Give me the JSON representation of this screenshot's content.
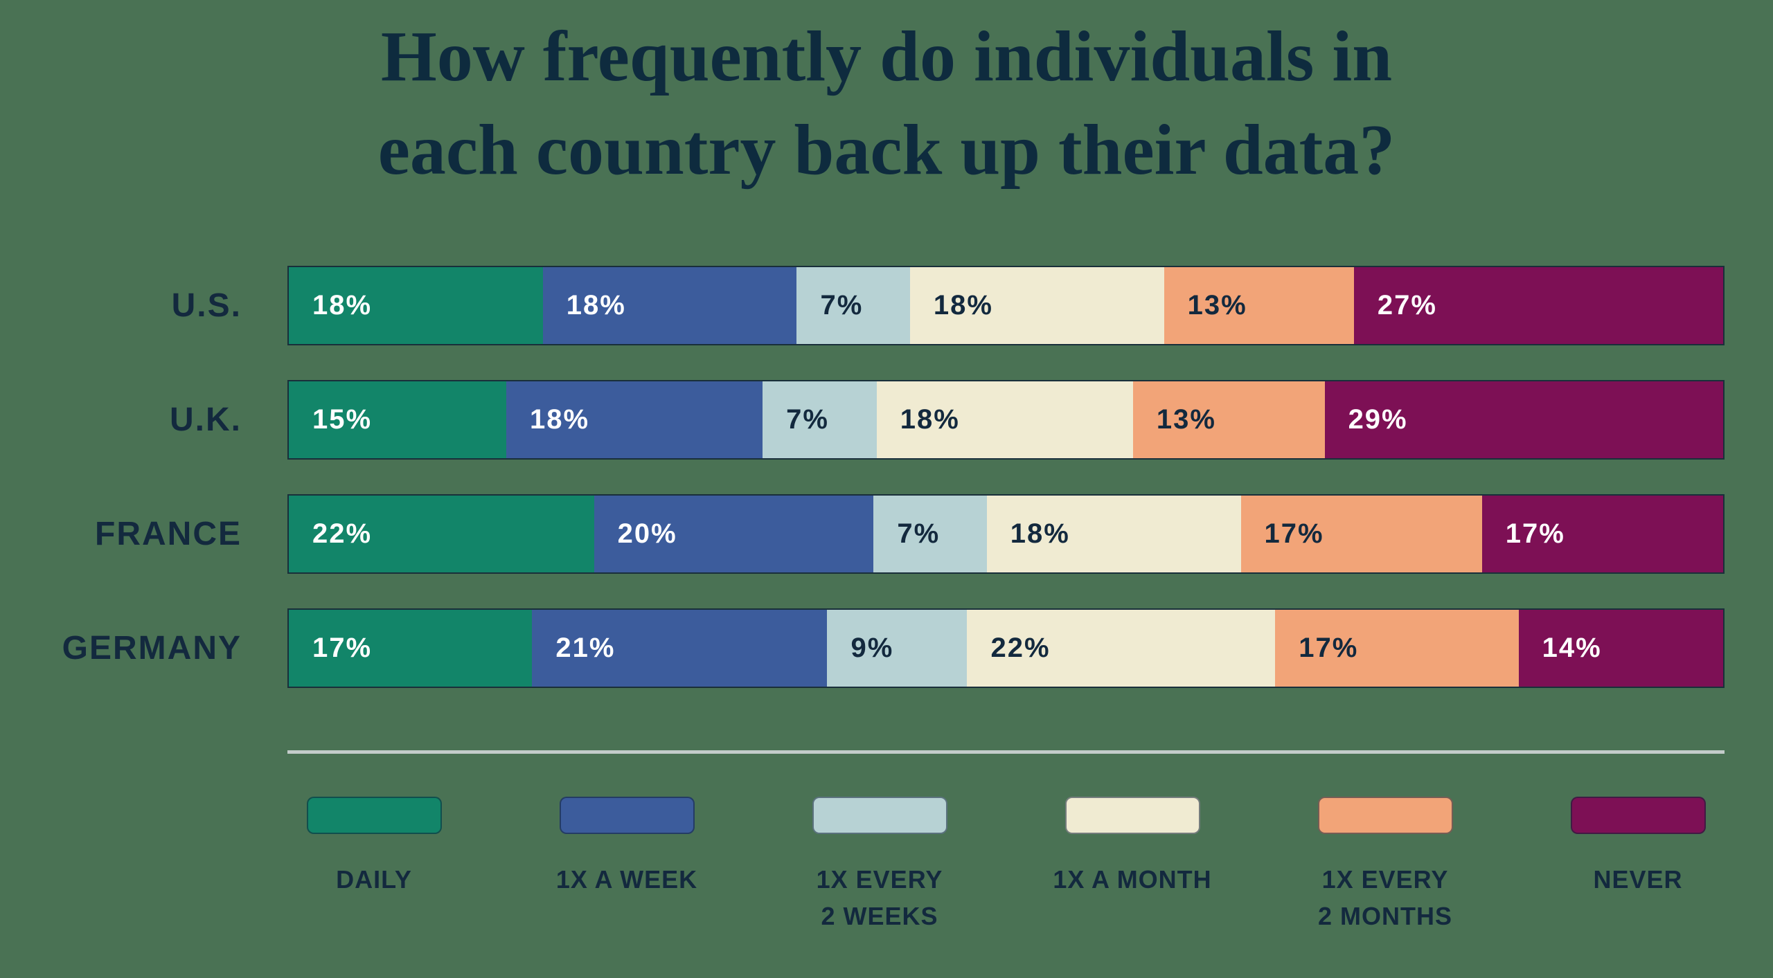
{
  "title": {
    "line1": "How frequently do individuals in",
    "line2": "each country back up their data?"
  },
  "colors": {
    "background": "#4A7254",
    "text_dark": "#13293E",
    "text_light": "#FFFFFF",
    "divider": "#C3CCCA",
    "bar_outline": "#102336"
  },
  "chart_data": {
    "type": "bar",
    "orientation": "horizontal-stacked",
    "title": "How frequently do individuals in each country back up their data?",
    "unit": "%",
    "value_labels_shown": true,
    "legend_position": "bottom",
    "categories": [
      "U.S.",
      "U.K.",
      "FRANCE",
      "GERMANY"
    ],
    "series": [
      {
        "name": "DAILY",
        "color": "#128569",
        "label_color": "#FFFFFF",
        "values": [
          18,
          15,
          22,
          17
        ]
      },
      {
        "name": "1X A WEEK",
        "color": "#3C5C9C",
        "label_color": "#FFFFFF",
        "values": [
          18,
          18,
          20,
          21
        ]
      },
      {
        "name": "1X EVERY 2 WEEKS",
        "color": "#B7D2D4",
        "label_color": "#13293E",
        "values": [
          7,
          7,
          7,
          9
        ]
      },
      {
        "name": "1X A MONTH",
        "color": "#F0EBD2",
        "label_color": "#13293E",
        "values": [
          18,
          18,
          18,
          22
        ]
      },
      {
        "name": "1X EVERY 2 MONTHS",
        "color": "#F2A478",
        "label_color": "#13293E",
        "values": [
          13,
          13,
          17,
          17
        ]
      },
      {
        "name": "NEVER",
        "color": "#7D1055",
        "label_color": "#FFFFFF",
        "values": [
          27,
          29,
          17,
          14
        ]
      }
    ],
    "legend": [
      {
        "lines": [
          "DAILY"
        ],
        "color": "#128569"
      },
      {
        "lines": [
          "1X A WEEK"
        ],
        "color": "#3C5C9C"
      },
      {
        "lines": [
          "1X EVERY",
          "2 WEEKS"
        ],
        "color": "#B7D2D4"
      },
      {
        "lines": [
          "1X A MONTH"
        ],
        "color": "#F0EBD2"
      },
      {
        "lines": [
          "1X EVERY",
          "2 MONTHS"
        ],
        "color": "#F2A478"
      },
      {
        "lines": [
          "NEVER"
        ],
        "color": "#7D1055"
      }
    ]
  }
}
